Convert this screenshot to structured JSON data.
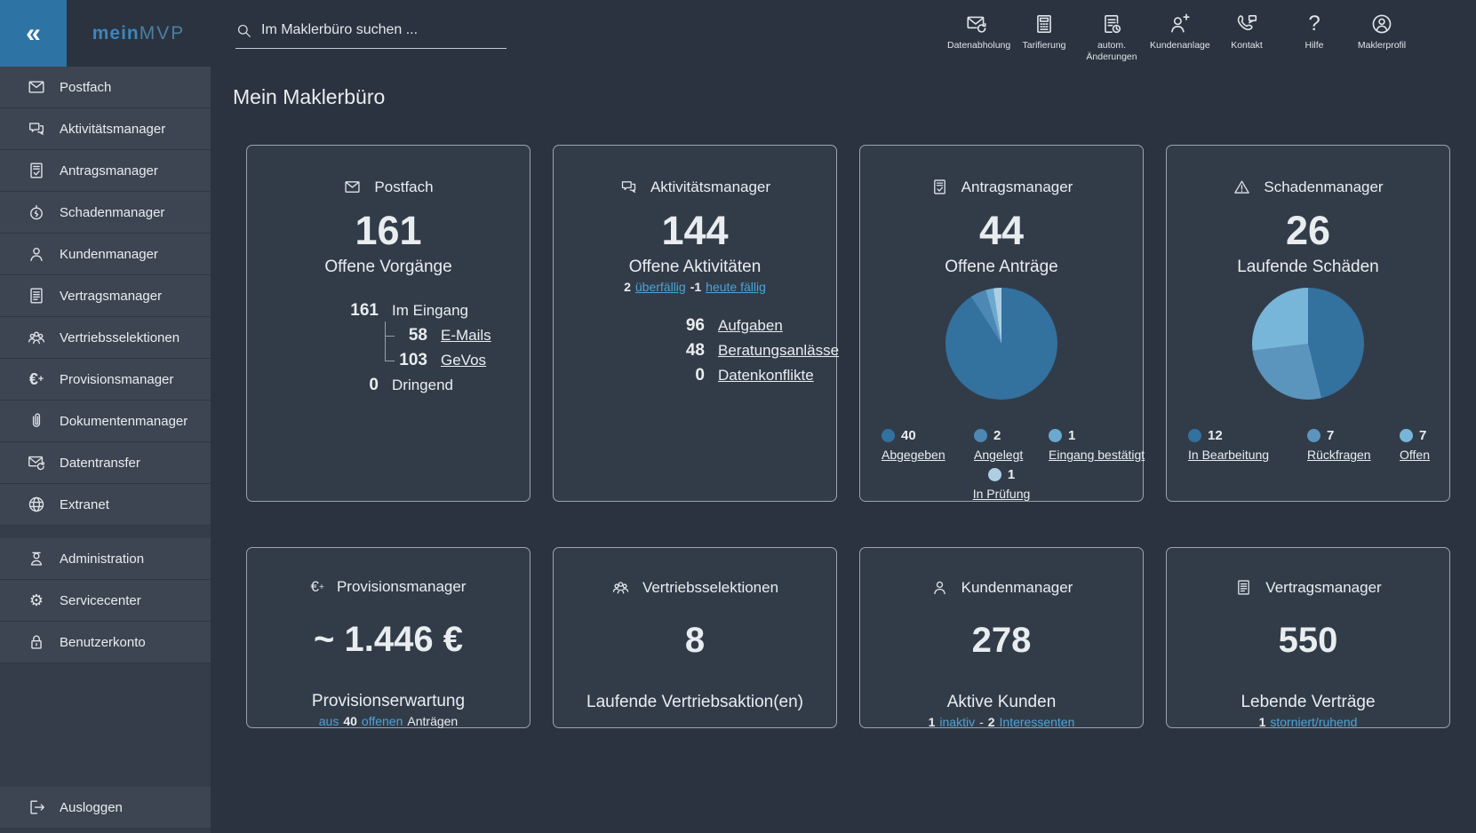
{
  "app": {
    "background": "#2a333f",
    "card_background": "#323c49",
    "accent": "#2d74a4",
    "link_blue": "#4aa3d8"
  },
  "header": {
    "collapse_glyph": "«",
    "collapse_icon": "double-chevron-left-icon",
    "logo": {
      "part1": "mein",
      "part2": "MVP"
    },
    "search": {
      "placeholder": "Im Maklerbüro suchen ...",
      "icon": "search-icon",
      "value": ""
    },
    "actions": [
      {
        "id": "datenabholung",
        "label": "Datenabholung",
        "icon": "mail-sync-icon"
      },
      {
        "id": "tarifierung",
        "label": "Tarifierung",
        "icon": "calculator-icon"
      },
      {
        "id": "autom-aenderungen",
        "label": "autom. Änderungen",
        "icon": "doc-clock-icon"
      },
      {
        "id": "kundenanlage",
        "label": "Kundenanlage",
        "icon": "person-plus-icon"
      },
      {
        "id": "kontakt",
        "label": "Kontakt",
        "icon": "phone-chat-icon"
      },
      {
        "id": "hilfe",
        "label": "Hilfe",
        "icon": "question-icon"
      },
      {
        "id": "maklerprofil",
        "label": "Maklerprofil",
        "icon": "person-circle-icon"
      }
    ]
  },
  "sidebar": {
    "groups": [
      {
        "items": [
          {
            "id": "postfach",
            "label": "Postfach",
            "icon": "envelope-icon"
          },
          {
            "id": "aktivitaetsmanager",
            "label": "Aktivitätsmanager",
            "icon": "chat-icon"
          },
          {
            "id": "antragsmanager",
            "label": "Antragsmanager",
            "icon": "doc-check-icon"
          },
          {
            "id": "schadenmanager",
            "label": "Schadenmanager",
            "icon": "damage-icon"
          },
          {
            "id": "kundenmanager",
            "label": "Kundenmanager",
            "icon": "person-icon"
          },
          {
            "id": "vertragsmanager",
            "label": "Vertragsmanager",
            "icon": "doc-lines-icon"
          },
          {
            "id": "vertriebsselektionen",
            "label": "Vertriebsselektionen",
            "icon": "group-icon"
          },
          {
            "id": "provisionsmanager",
            "label": "Provisionsmanager",
            "icon": "euro-plus-icon"
          },
          {
            "id": "dokumentenmanager",
            "label": "Dokumentenmanager",
            "icon": "paperclip-icon"
          },
          {
            "id": "datentransfer",
            "label": "Datentransfer",
            "icon": "mail-sync-icon"
          },
          {
            "id": "extranet",
            "label": "Extranet",
            "icon": "globe-icon"
          }
        ]
      },
      {
        "items": [
          {
            "id": "administration",
            "label": "Administration",
            "icon": "admin-icon"
          },
          {
            "id": "servicecenter",
            "label": "Servicecenter",
            "icon": "gear-icon"
          },
          {
            "id": "benutzerkonto",
            "label": "Benutzerkonto",
            "icon": "lock-icon"
          }
        ]
      },
      {
        "pinned_bottom": true,
        "items": [
          {
            "id": "ausloggen",
            "label": "Ausloggen",
            "icon": "logout-icon"
          }
        ]
      }
    ]
  },
  "page_title": "Mein Maklerbüro",
  "cards": {
    "big": [
      {
        "id": "postfach",
        "title": "Postfach",
        "icon": "envelope-icon",
        "big_number": "161",
        "subtitle": "Offene Vorgänge",
        "tree": true,
        "rows": [
          {
            "value": "161",
            "label": "Im Eingang",
            "link": false,
            "indent": false
          },
          {
            "value": "58",
            "label": "E-Mails",
            "link": true,
            "indent": true
          },
          {
            "value": "103",
            "label": "GeVos",
            "link": true,
            "indent": true
          },
          {
            "value": "0",
            "label": "Dringend",
            "link": false,
            "indent": false
          }
        ]
      },
      {
        "id": "aktivitaetsmanager",
        "title": "Aktivitätsmanager",
        "icon": "chat-icon",
        "big_number": "144",
        "subtitle": "Offene Aktivitäten",
        "status_line": [
          {
            "text": "2",
            "bold": true
          },
          {
            "text": "überfällig",
            "color": "blue",
            "underline": true
          },
          {
            "text": "-1",
            "bold": true
          },
          {
            "text": "heute fällig",
            "color": "blue",
            "underline": true
          }
        ],
        "rows": [
          {
            "value": "96",
            "label": "Aufgaben",
            "link": true
          },
          {
            "value": "48",
            "label": "Beratungsanlässe",
            "link": true
          },
          {
            "value": "0",
            "label": "Datenkonflikte",
            "link": true
          }
        ]
      },
      {
        "id": "antragsmanager",
        "title": "Antragsmanager",
        "icon": "doc-check-icon",
        "big_number": "44",
        "subtitle": "Offene Anträge",
        "pie": {
          "type": "pie",
          "total": 44,
          "values": [
            40,
            2,
            1,
            1
          ],
          "colors": [
            "#33719f",
            "#4d88b4",
            "#6ba9cf",
            "#aecfe2"
          ]
        },
        "legend": [
          {
            "value": "40",
            "label": "Abgegeben",
            "color": "#33719f"
          },
          {
            "value": "2",
            "label": "Angelegt",
            "color": "#4d88b4"
          },
          {
            "value": "1",
            "label": "Eingang bestätigt",
            "color": "#6ba9cf"
          },
          {
            "value": "1",
            "label": "In Prüfung",
            "color": "#aecfe2"
          }
        ]
      },
      {
        "id": "schadenmanager",
        "title": "Schadenmanager",
        "icon": "warning-icon",
        "big_number": "26",
        "subtitle": "Laufende Schäden",
        "pie": {
          "type": "pie",
          "total": 26,
          "values": [
            12,
            7,
            7
          ],
          "colors": [
            "#33719f",
            "#5b95bd",
            "#77b5d9"
          ]
        },
        "legend": [
          {
            "value": "12",
            "label": "In Bearbeitung",
            "color": "#33719f"
          },
          {
            "value": "7",
            "label": "Rückfragen",
            "color": "#5b95bd"
          },
          {
            "value": "7",
            "label": "Offen",
            "color": "#77b5d9"
          }
        ]
      }
    ],
    "small": [
      {
        "id": "provisionsmanager",
        "title": "Provisionsmanager",
        "icon": "euro-plus-icon",
        "big_number": "~ 1.446 €",
        "subtitle": "Provisionserwartung",
        "status_line": [
          {
            "text": "aus",
            "color": "blue"
          },
          {
            "text": "40",
            "bold": true
          },
          {
            "text": "offenen",
            "color": "blue"
          },
          {
            "text": "Anträgen"
          }
        ]
      },
      {
        "id": "vertriebsselektionen",
        "title": "Vertriebsselektionen",
        "icon": "group-icon",
        "big_number": "8",
        "subtitle": "Laufende Vertriebsaktion(en)"
      },
      {
        "id": "kundenmanager",
        "title": "Kundenmanager",
        "icon": "person-icon",
        "big_number": "278",
        "subtitle": "Aktive Kunden",
        "status_line": [
          {
            "text": "1",
            "bold": true
          },
          {
            "text": "inaktiv",
            "color": "blue"
          },
          {
            "text": "-"
          },
          {
            "text": "2",
            "bold": true
          },
          {
            "text": "Interessenten",
            "color": "blue"
          }
        ]
      },
      {
        "id": "vertragsmanager",
        "title": "Vertragsmanager",
        "icon": "doc-lines-icon",
        "big_number": "550",
        "subtitle": "Lebende Verträge",
        "status_line": [
          {
            "text": "1",
            "bold": true
          },
          {
            "text": "storniert/ruhend",
            "color": "blue"
          }
        ]
      }
    ]
  }
}
